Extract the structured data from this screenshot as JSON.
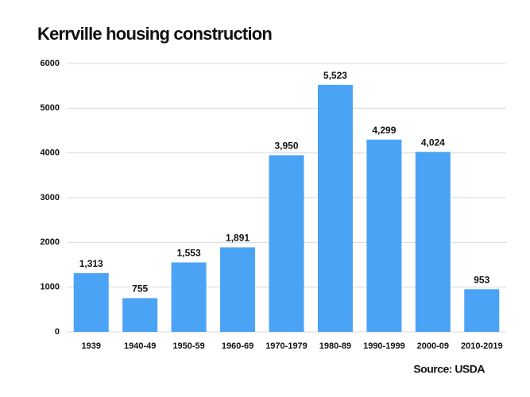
{
  "chart_data": {
    "type": "bar",
    "title": "Kerrville housing construction",
    "source": "Source: USDA",
    "categories": [
      "1939",
      "1940-49",
      "1950-59",
      "1960-69",
      "1970-1979",
      "1980-89",
      "1990-1999",
      "2000-09",
      "2010-2019"
    ],
    "values": [
      1313,
      755,
      1553,
      1891,
      3950,
      5523,
      4299,
      4024,
      953
    ],
    "value_labels": [
      "1,313",
      "755",
      "1,553",
      "1,891",
      "3,950",
      "5,523",
      "4,299",
      "4,024",
      "953"
    ],
    "color": "#4aa3f5",
    "ylim": [
      0,
      6000
    ],
    "yticks": [
      0,
      1000,
      2000,
      3000,
      4000,
      5000,
      6000
    ],
    "grid": true
  }
}
